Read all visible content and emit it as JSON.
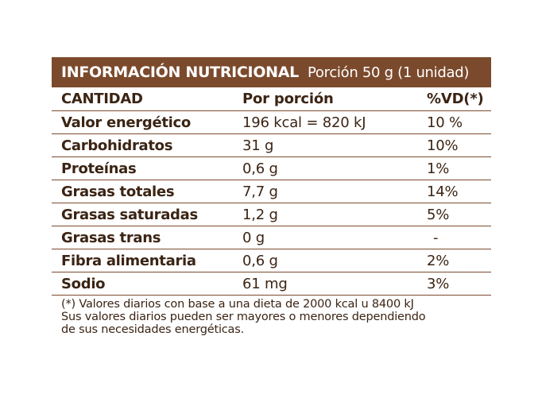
{
  "header": {
    "title": "INFORMACIÓN NUTRICIONAL",
    "portion": "Porción 50 g (1 unidad)"
  },
  "columns": {
    "c1": "CANTIDAD",
    "c2": "Por porción",
    "c3": "%VD(*)"
  },
  "rows": [
    {
      "name": "Valor energético",
      "amount": "196 kcal = 820 kJ",
      "dv": "10 %"
    },
    {
      "name": "Carbohidratos",
      "amount": "31 g",
      "dv": "10%"
    },
    {
      "name": "Proteínas",
      "amount": "0,6 g",
      "dv": "1%"
    },
    {
      "name": "Grasas totales",
      "amount": "7,7 g",
      "dv": "14%"
    },
    {
      "name": "Grasas saturadas",
      "amount": "1,2 g",
      "dv": "5%"
    },
    {
      "name": "Grasas trans",
      "amount": "0 g",
      "dv": "-"
    },
    {
      "name": "Fibra alimentaria",
      "amount": "0,6 g",
      "dv": "2%"
    },
    {
      "name": "Sodio",
      "amount": "61 mg",
      "dv": "3%"
    }
  ],
  "footnote": {
    "line1": "(*) Valores diarios con base a una dieta de 2000 kcal u 8400 kJ",
    "line2": "Sus valores diarios pueden ser mayores o menores dependiendo",
    "line3": "de sus necesidades energéticas."
  },
  "colors": {
    "header_bg": "#7b4a2c",
    "text": "#3b2414",
    "rule": "#7b4a2c"
  }
}
